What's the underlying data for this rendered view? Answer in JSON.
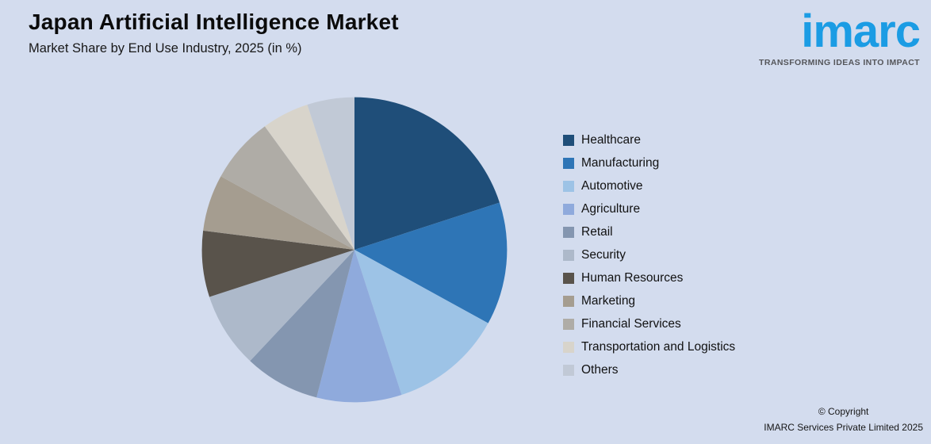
{
  "header": {
    "title": "Japan Artificial Intelligence Market",
    "subtitle": "Market Share by End Use Industry, 2025 (in %)"
  },
  "logo": {
    "text": "imarc",
    "tagline": "TRANSFORMING IDEAS INTO IMPACT",
    "brand_color": "#1b9ce4"
  },
  "footer": {
    "line1": "© Copyright",
    "line2": "IMARC Services Private Limited 2025"
  },
  "colors": {
    "background": "#d3dcee"
  },
  "chart_data": {
    "type": "pie",
    "title": "Japan Artificial Intelligence Market",
    "subtitle": "Market Share by End Use Industry, 2025 (in %)",
    "start_angle_deg": 0,
    "direction": "clockwise",
    "legend_position": "right",
    "slices": [
      {
        "label": "Healthcare",
        "value": 20,
        "color": "#1f4e79"
      },
      {
        "label": "Manufacturing",
        "value": 13,
        "color": "#2e75b6"
      },
      {
        "label": "Automotive",
        "value": 12,
        "color": "#9dc3e6"
      },
      {
        "label": "Agriculture",
        "value": 9,
        "color": "#8faadc"
      },
      {
        "label": "Retail",
        "value": 8,
        "color": "#8496b0"
      },
      {
        "label": "Security",
        "value": 8,
        "color": "#adb9ca"
      },
      {
        "label": "Human Resources",
        "value": 7,
        "color": "#59534b"
      },
      {
        "label": "Marketing",
        "value": 6,
        "color": "#a59d90"
      },
      {
        "label": "Financial Services",
        "value": 7,
        "color": "#afaca6"
      },
      {
        "label": "Transportation and Logistics",
        "value": 5,
        "color": "#d8d4cb"
      },
      {
        "label": "Others",
        "value": 5,
        "color": "#c1c9d6"
      }
    ]
  }
}
